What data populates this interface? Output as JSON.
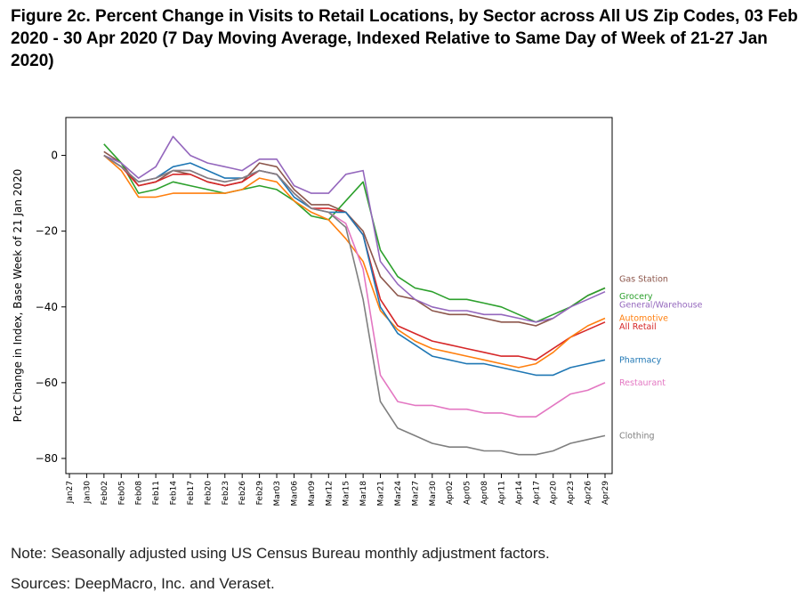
{
  "figure": {
    "title": "Figure 2c. Percent Change in Visits to Retail Locations, by Sector across All US Zip Codes, 03 Feb 2020 - 30 Apr 2020 (7 Day Moving Average, Indexed Relative to Same Day of Week of 21-27 Jan 2020)",
    "note": "Note: Seasonally adjusted using US Census Bureau monthly adjustment factors.",
    "sources": "Sources: DeepMacro, Inc. and Veraset."
  },
  "chart_data": {
    "type": "line",
    "title": "",
    "xlabel": "",
    "ylabel": "Pct Change in Index, Base Week of 21 Jan 2020",
    "ylim": [
      -84,
      10
    ],
    "yticks": [
      0,
      -20,
      -40,
      -60,
      -80
    ],
    "grid": false,
    "legend": "labels at right end of lines",
    "x_tick_labels": [
      "Jan27",
      "Jan30",
      "Feb02",
      "Feb05",
      "Feb08",
      "Feb11",
      "Feb14",
      "Feb17",
      "Feb20",
      "Feb23",
      "Feb26",
      "Feb29",
      "Mar03",
      "Mar06",
      "Mar09",
      "Mar12",
      "Mar15",
      "Mar18",
      "Mar21",
      "Mar24",
      "Mar27",
      "Mar30",
      "Apr02",
      "Apr05",
      "Apr08",
      "Apr11",
      "Apr14",
      "Apr17",
      "Apr20",
      "Apr23",
      "Apr26",
      "Apr29"
    ],
    "x": [
      "Feb02",
      "Feb05",
      "Feb08",
      "Feb11",
      "Feb14",
      "Feb17",
      "Feb20",
      "Feb23",
      "Feb26",
      "Feb29",
      "Mar03",
      "Mar06",
      "Mar09",
      "Mar12",
      "Mar15",
      "Mar18",
      "Mar21",
      "Mar24",
      "Mar27",
      "Mar30",
      "Apr02",
      "Apr05",
      "Apr08",
      "Apr11",
      "Apr14",
      "Apr17",
      "Apr20",
      "Apr23",
      "Apr26",
      "Apr29"
    ],
    "series": [
      {
        "name": "Gas Station",
        "color": "#8c564b",
        "values": [
          1,
          -2,
          -8,
          -7,
          -4,
          -5,
          -7,
          -8,
          -7,
          -2,
          -3,
          -9,
          -13,
          -13,
          -15,
          -20,
          -32,
          -37,
          -38,
          -41,
          -42,
          -42,
          -43,
          -44,
          -44,
          -45,
          -43,
          -40,
          -37,
          -35
        ]
      },
      {
        "name": "Grocery",
        "color": "#2ca02c",
        "values": [
          3,
          -2,
          -10,
          -9,
          -7,
          -8,
          -9,
          -10,
          -9,
          -8,
          -9,
          -12,
          -16,
          -17,
          -12,
          -7,
          -25,
          -32,
          -35,
          -36,
          -38,
          -38,
          -39,
          -40,
          -42,
          -44,
          -42,
          -40,
          -37,
          -35
        ]
      },
      {
        "name": "General/Warehouse",
        "color": "#9467bd",
        "values": [
          0,
          -2,
          -6,
          -3,
          5,
          0,
          -2,
          -3,
          -4,
          -1,
          -1,
          -8,
          -10,
          -10,
          -5,
          -4,
          -28,
          -34,
          -38,
          -40,
          -41,
          -41,
          -42,
          -42,
          -43,
          -44,
          -43,
          -40,
          -38,
          -36
        ]
      },
      {
        "name": "All Retail",
        "color": "#d62728",
        "values": [
          0,
          -3,
          -8,
          -7,
          -5,
          -5,
          -7,
          -8,
          -7,
          -4,
          -5,
          -10,
          -14,
          -14,
          -15,
          -21,
          -38,
          -45,
          -47,
          -49,
          -50,
          -51,
          -52,
          -53,
          -53,
          -54,
          -51,
          -48,
          -46,
          -44
        ]
      },
      {
        "name": "Automotive",
        "color": "#ff7f0e",
        "values": [
          0,
          -4,
          -11,
          -11,
          -10,
          -10,
          -10,
          -10,
          -9,
          -6,
          -7,
          -12,
          -15,
          -17,
          -22,
          -28,
          -41,
          -46,
          -49,
          -51,
          -52,
          -53,
          -54,
          -55,
          -56,
          -55,
          -52,
          -48,
          -45,
          -43
        ]
      },
      {
        "name": "Pharmacy",
        "color": "#1f77b4",
        "values": [
          0,
          -3,
          -7,
          -6,
          -3,
          -2,
          -4,
          -6,
          -6,
          -4,
          -5,
          -11,
          -14,
          -15,
          -15,
          -21,
          -40,
          -47,
          -50,
          -53,
          -54,
          -55,
          -55,
          -56,
          -57,
          -58,
          -58,
          -56,
          -55,
          -54
        ]
      },
      {
        "name": "Restaurant",
        "color": "#e377c2",
        "values": [
          0,
          -3,
          -7,
          -6,
          -4,
          -4,
          -6,
          -7,
          -6,
          -4,
          -5,
          -10,
          -14,
          -15,
          -18,
          -30,
          -58,
          -65,
          -66,
          -66,
          -67,
          -67,
          -68,
          -68,
          -69,
          -69,
          -66,
          -63,
          -62,
          -60
        ]
      },
      {
        "name": "Clothing",
        "color": "#7f7f7f",
        "values": [
          0,
          -3,
          -7,
          -6,
          -4,
          -4,
          -6,
          -7,
          -6,
          -4,
          -5,
          -10,
          -14,
          -15,
          -19,
          -38,
          -65,
          -72,
          -74,
          -76,
          -77,
          -77,
          -78,
          -78,
          -79,
          -79,
          -78,
          -76,
          -75,
          -74
        ]
      }
    ],
    "label_offsets_note": "labels drawn at line ends"
  }
}
